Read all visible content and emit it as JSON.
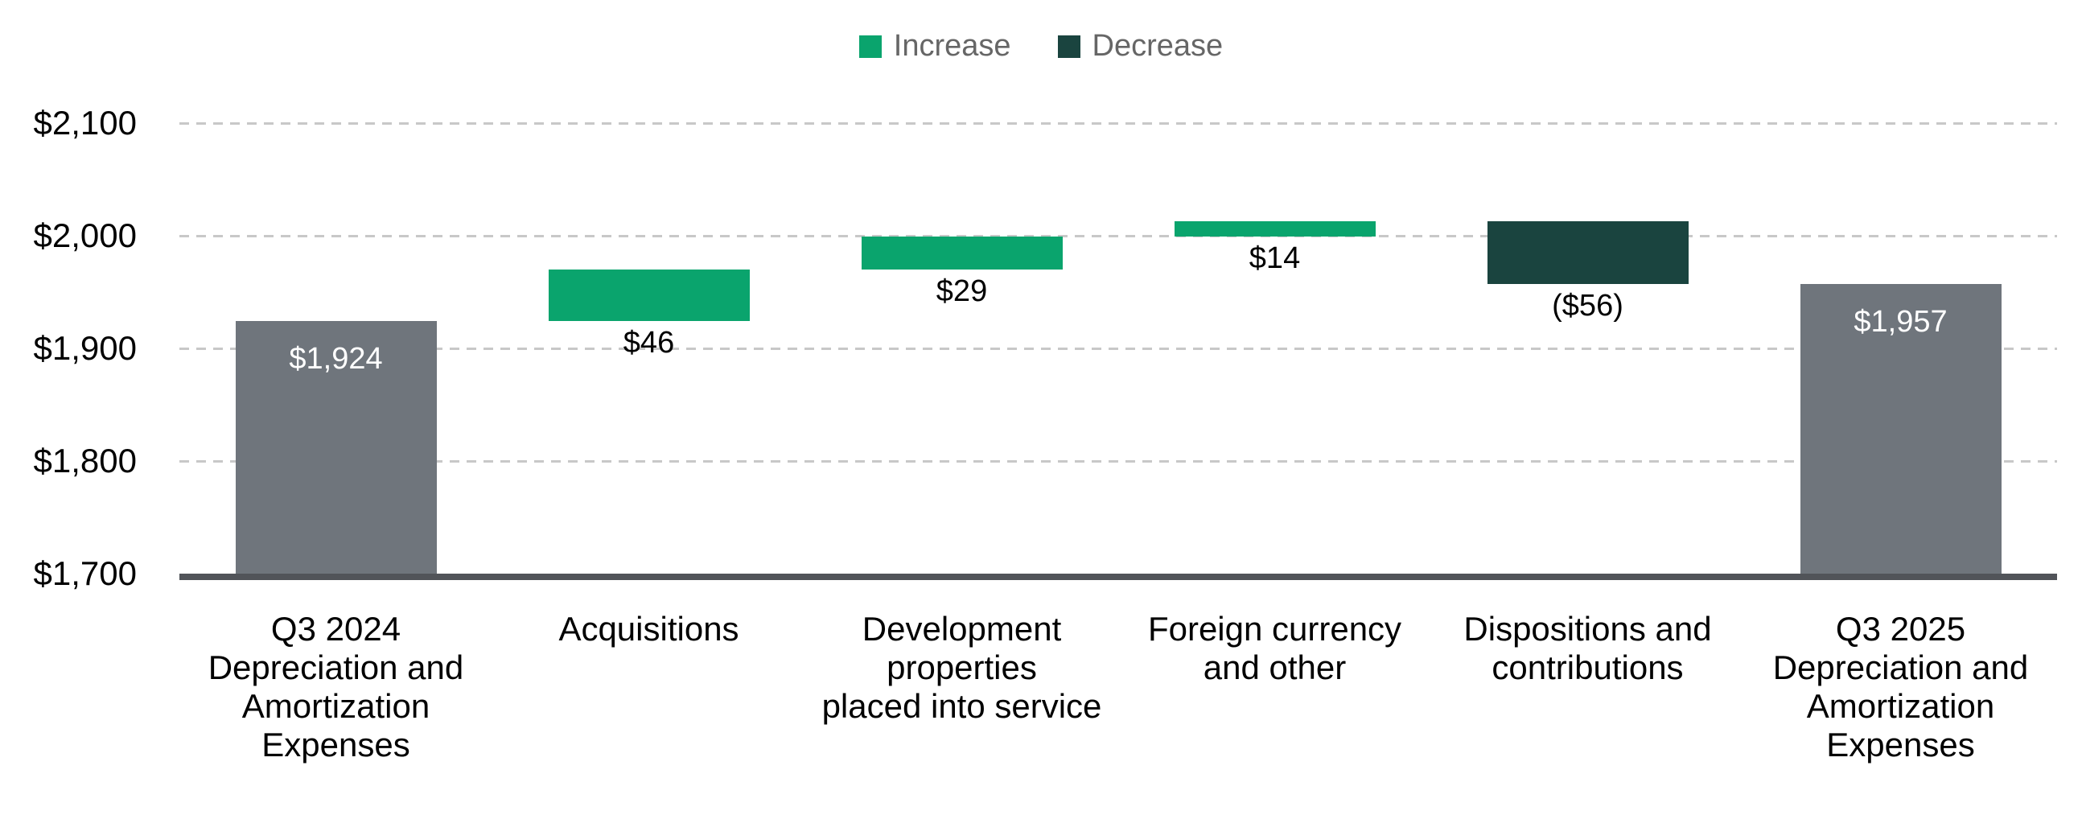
{
  "chart_data": {
    "type": "bar",
    "subtype": "waterfall",
    "title": "",
    "legend": {
      "position": "top-center",
      "entries": [
        {
          "role": "increase",
          "label": "Increase"
        },
        {
          "role": "decrease",
          "label": "Decrease"
        }
      ]
    },
    "y_axis": {
      "min": 1700,
      "max": 2100,
      "step": 100,
      "tick_labels": [
        "$1,700",
        "$1,800",
        "$1,900",
        "$2,000",
        "$2,100"
      ],
      "grid": "horizontal-dashed"
    },
    "categories": [
      "Q3 2024\nDepreciation and\nAmortization\nExpenses",
      "Acquisitions",
      "Development\nproperties\nplaced into service",
      "Foreign currency\nand other",
      "Dispositions and\ncontributions",
      "Q3 2025\nDepreciation and\nAmortization\nExpenses"
    ],
    "bars": [
      {
        "role": "total",
        "start": 1700,
        "end": 1924,
        "value": 1924,
        "data_label": "$1,924",
        "label_placement": "inside-top"
      },
      {
        "role": "increase",
        "start": 1924,
        "end": 1970,
        "value": 46,
        "data_label": "$46",
        "label_placement": "below"
      },
      {
        "role": "increase",
        "start": 1970,
        "end": 1999,
        "value": 29,
        "data_label": "$29",
        "label_placement": "below"
      },
      {
        "role": "increase",
        "start": 1999,
        "end": 2013,
        "value": 14,
        "data_label": "$14",
        "label_placement": "below"
      },
      {
        "role": "decrease",
        "start": 2013,
        "end": 1957,
        "value": -56,
        "data_label": "($56)",
        "label_placement": "below"
      },
      {
        "role": "total",
        "start": 1700,
        "end": 1957,
        "value": 1957,
        "data_label": "$1,957",
        "label_placement": "inside-top"
      }
    ],
    "colors": {
      "total": "#6F757C",
      "increase": "#0AA46D",
      "decrease": "#1A443F",
      "axis_line": "#515459",
      "gridline": "#C8C8C8",
      "tick_label": "#000000",
      "category_label": "#000000",
      "data_label_inside": "#FFFFFF",
      "data_label_outside": "#000000",
      "legend_text": "#666666",
      "background": "#FFFFFF"
    }
  }
}
